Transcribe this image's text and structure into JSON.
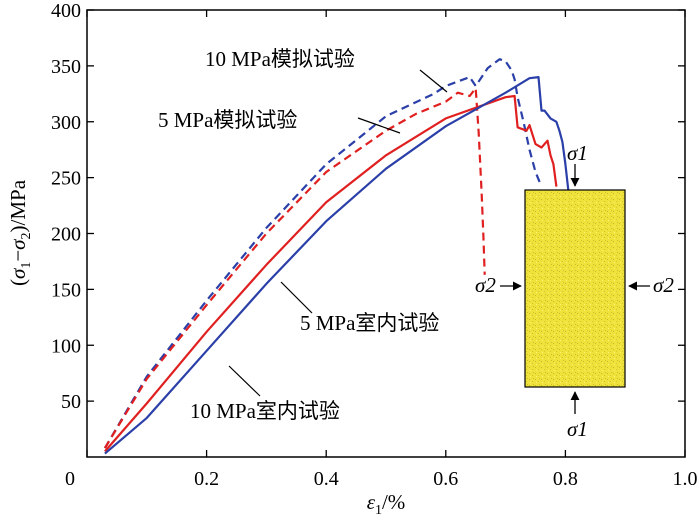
{
  "chart_data": {
    "type": "line",
    "xlabel": "ε1/%",
    "ylabel": "(σ1−σ2)/MPa",
    "xlim": [
      0,
      1.0
    ],
    "ylim": [
      0,
      400
    ],
    "x_ticks": [
      "0",
      "0.2",
      "0.4",
      "0.6",
      "0.8",
      "1.0"
    ],
    "y_ticks": [
      "50",
      "100",
      "150",
      "200",
      "250",
      "300",
      "350",
      "400"
    ],
    "grid": false,
    "series": [
      {
        "name": "10 MPa模拟试验",
        "color": "#2b3fa8",
        "style": "dashed",
        "points": [
          [
            0.03,
            8
          ],
          [
            0.1,
            72
          ],
          [
            0.2,
            140
          ],
          [
            0.3,
            205
          ],
          [
            0.4,
            262
          ],
          [
            0.5,
            305
          ],
          [
            0.58,
            325
          ],
          [
            0.6,
            332
          ],
          [
            0.62,
            336
          ],
          [
            0.64,
            340
          ],
          [
            0.65,
            332
          ],
          [
            0.67,
            348
          ],
          [
            0.69,
            356
          ],
          [
            0.7,
            354
          ],
          [
            0.71,
            346
          ],
          [
            0.715,
            338
          ],
          [
            0.72,
            322
          ],
          [
            0.73,
            300
          ],
          [
            0.74,
            275
          ],
          [
            0.75,
            255
          ],
          [
            0.76,
            242
          ]
        ]
      },
      {
        "name": "5 MPa模拟试验",
        "color": "#e02020",
        "style": "dashed",
        "points": [
          [
            0.03,
            8
          ],
          [
            0.1,
            70
          ],
          [
            0.2,
            136
          ],
          [
            0.3,
            200
          ],
          [
            0.4,
            255
          ],
          [
            0.5,
            292
          ],
          [
            0.55,
            307
          ],
          [
            0.6,
            318
          ],
          [
            0.62,
            326
          ],
          [
            0.64,
            323
          ],
          [
            0.65,
            330
          ],
          [
            0.655,
            290
          ],
          [
            0.66,
            235
          ],
          [
            0.663,
            195
          ],
          [
            0.665,
            163
          ]
        ]
      },
      {
        "name": "5 MPa室内试验",
        "color": "#e02020",
        "style": "solid",
        "points": [
          [
            0.03,
            5
          ],
          [
            0.1,
            48
          ],
          [
            0.2,
            112
          ],
          [
            0.3,
            172
          ],
          [
            0.4,
            228
          ],
          [
            0.5,
            270
          ],
          [
            0.6,
            303
          ],
          [
            0.7,
            322
          ],
          [
            0.715,
            323
          ],
          [
            0.72,
            295
          ],
          [
            0.735,
            292
          ],
          [
            0.74,
            297
          ],
          [
            0.75,
            280
          ],
          [
            0.76,
            277
          ],
          [
            0.77,
            283
          ],
          [
            0.775,
            270
          ],
          [
            0.78,
            262
          ],
          [
            0.785,
            242
          ]
        ]
      },
      {
        "name": "10 MPa室内试验",
        "color": "#2b3fa8",
        "style": "solid",
        "points": [
          [
            0.03,
            3
          ],
          [
            0.1,
            35
          ],
          [
            0.2,
            95
          ],
          [
            0.3,
            155
          ],
          [
            0.4,
            211
          ],
          [
            0.5,
            258
          ],
          [
            0.6,
            296
          ],
          [
            0.7,
            326
          ],
          [
            0.74,
            339
          ],
          [
            0.755,
            340
          ],
          [
            0.76,
            310
          ],
          [
            0.765,
            310
          ],
          [
            0.775,
            303
          ],
          [
            0.785,
            300
          ],
          [
            0.79,
            292
          ],
          [
            0.795,
            282
          ],
          [
            0.8,
            262
          ],
          [
            0.805,
            238
          ]
        ]
      }
    ],
    "annotations": [
      {
        "text": "10 MPa模拟试验",
        "series": 0
      },
      {
        "text": "5 MPa模拟试验",
        "series": 1
      },
      {
        "text": "5 MPa室内试验",
        "series": 2
      },
      {
        "text": "10 MPa室内试验",
        "series": 3
      }
    ],
    "inset": {
      "fill_color": "#efe23a",
      "labels": [
        "σ1",
        "σ2",
        "σ2",
        "σ1"
      ]
    }
  }
}
